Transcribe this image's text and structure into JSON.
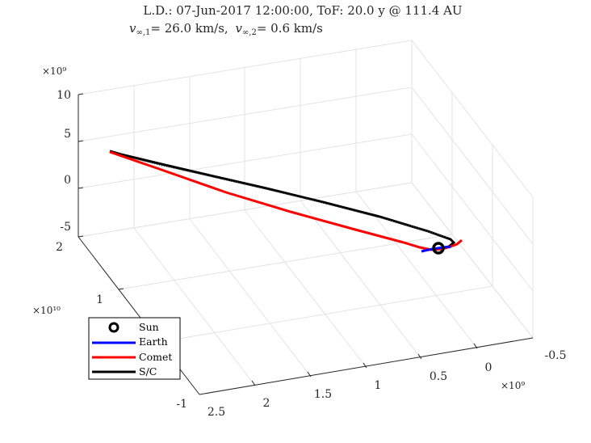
{
  "chart_data": {
    "type": "line",
    "title": "L.D.: 07-Jun-2017 12:00:00, ToF: 20.0 y @ 111.4 AU",
    "subtitle_parts": {
      "v1_symbol": "v",
      "v1_sub": "∞,1",
      "v1_value": "= 26.0 km/s,",
      "v2_symbol": "v",
      "v2_sub": "∞,2",
      "v2_value": "= 0.6 km/s"
    },
    "axes": {
      "x": {
        "ticks": [
          "-0.5",
          "0",
          "0.5",
          "1",
          "1.5",
          "2",
          "2.5"
        ],
        "exponent": "×10⁹",
        "range": [
          -0.5,
          2.5
        ]
      },
      "y": {
        "ticks": [
          "-1",
          "1",
          "2"
        ],
        "exponent": "×10¹⁰",
        "range": [
          -1,
          2
        ]
      },
      "z": {
        "ticks": [
          "-5",
          "0",
          "5",
          "10"
        ],
        "exponent": "×10⁹",
        "range": [
          -5,
          10
        ]
      }
    },
    "grid": true,
    "legend_placement": "bottom-left",
    "legend": [
      {
        "label": "Sun",
        "marker": "circle",
        "color": "#000000"
      },
      {
        "label": "Earth",
        "color": "#0000ff"
      },
      {
        "label": "Comet",
        "color": "#ff0000"
      },
      {
        "label": "S/C",
        "color": "#000000"
      }
    ],
    "series": [
      {
        "name": "Sun",
        "color": "#000000"
      },
      {
        "name": "Earth",
        "color": "#0000ff"
      },
      {
        "name": "Comet",
        "color": "#ff0000"
      },
      {
        "name": "S/C",
        "color": "#000000"
      }
    ]
  }
}
